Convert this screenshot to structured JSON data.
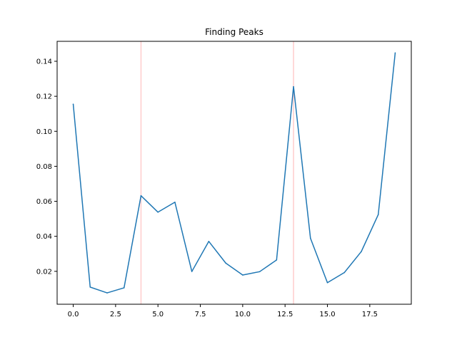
{
  "chart_data": {
    "type": "line",
    "title": "Finding Peaks",
    "xlabel": "",
    "ylabel": "",
    "xlim": [
      -0.95,
      19.95
    ],
    "ylim": [
      0.0012,
      0.1514
    ],
    "xticks": [
      0,
      2.5,
      5,
      7.5,
      10,
      12.5,
      15,
      17.5
    ],
    "xtick_labels": [
      "0.0",
      "2.5",
      "5.0",
      "7.5",
      "10.0",
      "12.5",
      "15.0",
      "17.5"
    ],
    "yticks": [
      0.02,
      0.04,
      0.06,
      0.08,
      0.1,
      0.12,
      0.14
    ],
    "ytick_labels": [
      "0.02",
      "0.04",
      "0.06",
      "0.08",
      "0.10",
      "0.12",
      "0.14"
    ],
    "grid": false,
    "series": [
      {
        "x": [
          0,
          1,
          2,
          3,
          4,
          5,
          6,
          7,
          8,
          9,
          10,
          11,
          12,
          13,
          14,
          15,
          16,
          17,
          18,
          19
        ],
        "values": [
          0.1155,
          0.011,
          0.0077,
          0.0106,
          0.0632,
          0.0538,
          0.0595,
          0.0199,
          0.0371,
          0.0247,
          0.0179,
          0.0198,
          0.0265,
          0.1255,
          0.0389,
          0.0135,
          0.0193,
          0.0313,
          0.0524,
          0.1448
        ],
        "color": "#1f77b4"
      }
    ],
    "peak_markers": {
      "x": [
        4,
        13
      ],
      "color": "#ffcccc"
    }
  }
}
